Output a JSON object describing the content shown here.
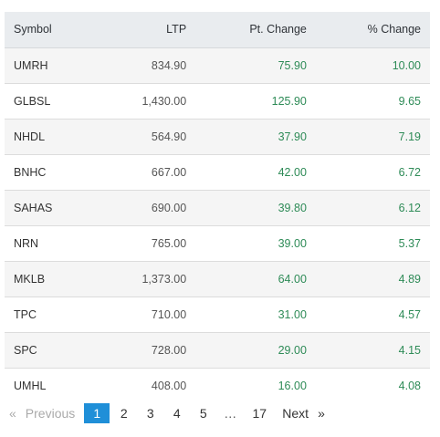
{
  "table": {
    "headers": {
      "symbol": "Symbol",
      "ltp": "LTP",
      "pt_change": "Pt. Change",
      "pct_change": "% Change"
    },
    "rows": [
      {
        "symbol": "UMRH",
        "ltp": "834.90",
        "pt_change": "75.90",
        "pct_change": "10.00"
      },
      {
        "symbol": "GLBSL",
        "ltp": "1,430.00",
        "pt_change": "125.90",
        "pct_change": "9.65"
      },
      {
        "symbol": "NHDL",
        "ltp": "564.90",
        "pt_change": "37.90",
        "pct_change": "7.19"
      },
      {
        "symbol": "BNHC",
        "ltp": "667.00",
        "pt_change": "42.00",
        "pct_change": "6.72"
      },
      {
        "symbol": "SAHAS",
        "ltp": "690.00",
        "pt_change": "39.80",
        "pct_change": "6.12"
      },
      {
        "symbol": "NRN",
        "ltp": "765.00",
        "pt_change": "39.00",
        "pct_change": "5.37"
      },
      {
        "symbol": "MKLB",
        "ltp": "1,373.00",
        "pt_change": "64.00",
        "pct_change": "4.89"
      },
      {
        "symbol": "TPC",
        "ltp": "710.00",
        "pt_change": "31.00",
        "pct_change": "4.57"
      },
      {
        "symbol": "SPC",
        "ltp": "728.00",
        "pt_change": "29.00",
        "pct_change": "4.15"
      },
      {
        "symbol": "UMHL",
        "ltp": "408.00",
        "pt_change": "16.00",
        "pct_change": "4.08"
      }
    ]
  },
  "pagination": {
    "prev_arrow": "«",
    "prev_label": "Previous",
    "pages": [
      "1",
      "2",
      "3",
      "4",
      "5"
    ],
    "active_page": "1",
    "ellipsis": "…",
    "last_page": "17",
    "next_label": "Next",
    "next_arrow": "»"
  },
  "colors": {
    "positive": "#2e8b57",
    "active_page_bg": "#1f8fd8",
    "header_bg": "#e9ecef"
  }
}
